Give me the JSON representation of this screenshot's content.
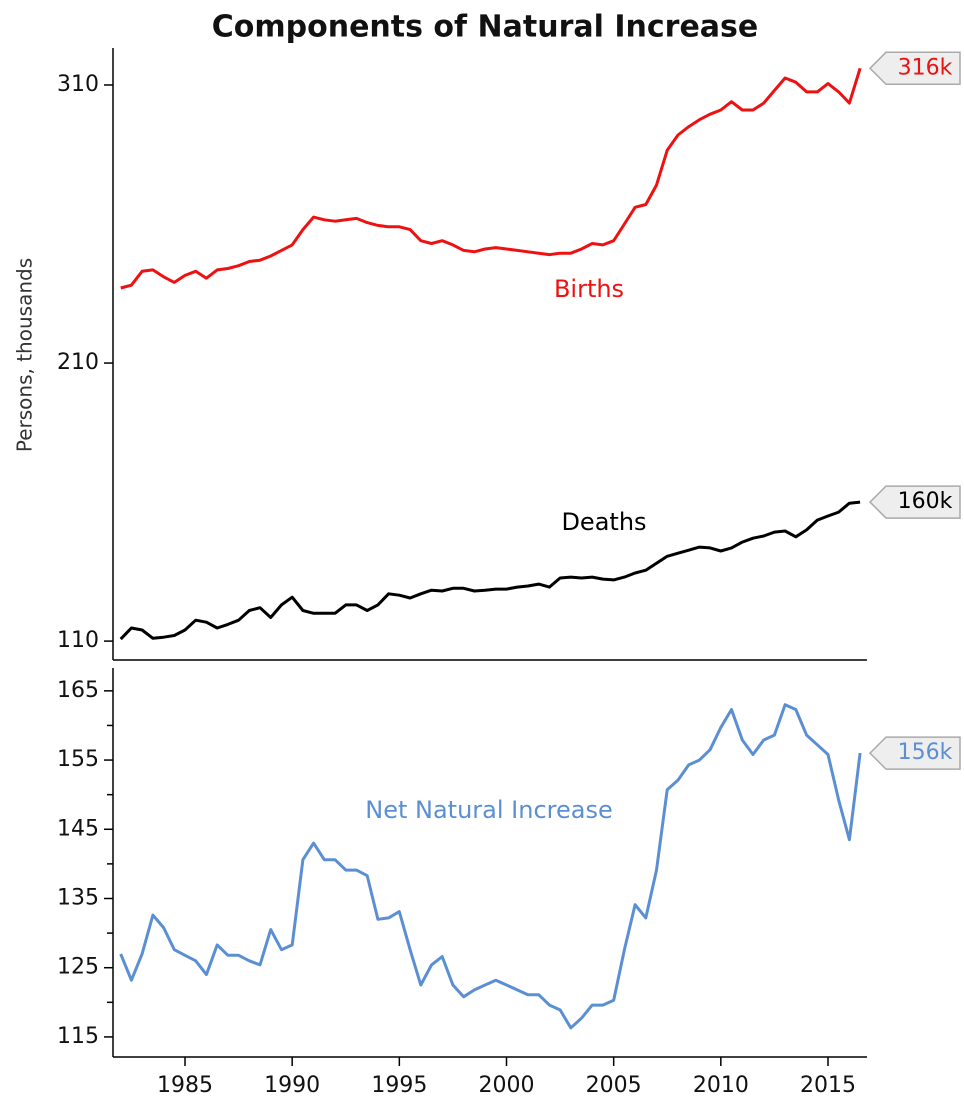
{
  "chart_data": [
    {
      "type": "line",
      "title": "Components of Natural Increase",
      "ylabel": "Persons, thousands",
      "x": [
        1982,
        1982.5,
        1983,
        1983.5,
        1984,
        1984.5,
        1985,
        1985.5,
        1986,
        1986.5,
        1987,
        1987.5,
        1988,
        1988.5,
        1989,
        1989.5,
        1990,
        1990.5,
        1991,
        1991.5,
        1992,
        1992.5,
        1993,
        1993.5,
        1994,
        1994.5,
        1995,
        1995.5,
        1996,
        1996.5,
        1997,
        1997.5,
        1998,
        1998.5,
        1999,
        1999.5,
        2000,
        2000.5,
        2001,
        2001.5,
        2002,
        2002.5,
        2003,
        2003.5,
        2004,
        2004.5,
        2005,
        2005.5,
        2006,
        2006.5,
        2007,
        2007.5,
        2008,
        2008.5,
        2009,
        2009.5,
        2010,
        2010.5,
        2011,
        2011.5,
        2012,
        2012.5,
        2013,
        2013.5,
        2014,
        2014.5,
        2015,
        2015.5,
        2016,
        2016.5
      ],
      "xlim": [
        1981.64,
        2016.82
      ],
      "ylim": [
        103.2,
        323.3
      ],
      "yticks": [
        110,
        210,
        310
      ],
      "series": [
        {
          "name": "Births",
          "color": "#ee1111",
          "end_label": "316k",
          "values": [
            237,
            238,
            243,
            243.5,
            241,
            239,
            241.5,
            243,
            240.5,
            243.5,
            244,
            245,
            246.5,
            247,
            248.5,
            250.5,
            252.5,
            258,
            262.5,
            261.5,
            261,
            261.5,
            262,
            260.5,
            259.5,
            259,
            259,
            258,
            254,
            253,
            254,
            252.5,
            250.5,
            250,
            251,
            251.5,
            251,
            250.5,
            250,
            249.5,
            249,
            249.5,
            249.5,
            251,
            253,
            252.5,
            254,
            260,
            266,
            267,
            274,
            286.5,
            292,
            295,
            297.5,
            299.5,
            301,
            304,
            301,
            301,
            303.5,
            308,
            312.5,
            311,
            307.5,
            307.5,
            310.5,
            307.5,
            303.5,
            316
          ]
        },
        {
          "name": "Deaths",
          "color": "#000000",
          "end_label": "160k",
          "values": [
            110.7,
            114.7,
            114,
            111,
            111.4,
            112,
            114,
            117.5,
            116.8,
            114.7,
            116,
            117.5,
            121,
            122,
            118.5,
            123,
            125.8,
            121,
            120,
            120,
            120,
            123,
            123,
            121,
            123,
            127,
            126.5,
            125.5,
            127,
            128.3,
            128,
            129,
            129,
            128,
            128.3,
            128.7,
            128.7,
            129.4,
            129.8,
            130.5,
            129.4,
            132.7,
            133,
            132.7,
            133,
            132.3,
            132,
            133,
            134.5,
            135.5,
            138,
            140.5,
            141.6,
            142.7,
            143.8,
            143.5,
            142.4,
            143.5,
            145.6,
            147,
            147.8,
            149.2,
            149.6,
            147.5,
            150,
            153.5,
            155,
            156.4,
            159.6,
            160
          ]
        }
      ]
    },
    {
      "type": "line",
      "x": [
        1982,
        1982.5,
        1983,
        1983.5,
        1984,
        1984.5,
        1985,
        1985.5,
        1986,
        1986.5,
        1987,
        1987.5,
        1988,
        1988.5,
        1989,
        1989.5,
        1990,
        1990.5,
        1991,
        1991.5,
        1992,
        1992.5,
        1993,
        1993.5,
        1994,
        1994.5,
        1995,
        1995.5,
        1996,
        1996.5,
        1997,
        1997.5,
        1998,
        1998.5,
        1999,
        1999.5,
        2000,
        2000.5,
        2001,
        2001.5,
        2002,
        2002.5,
        2003,
        2003.5,
        2004,
        2004.5,
        2005,
        2005.5,
        2006,
        2006.5,
        2007,
        2007.5,
        2008,
        2008.5,
        2009,
        2009.5,
        2010,
        2010.5,
        2011,
        2011.5,
        2012,
        2012.5,
        2013,
        2013.5,
        2014,
        2014.5,
        2015,
        2015.5,
        2016,
        2016.5
      ],
      "xlim": [
        1981.64,
        2016.82
      ],
      "xticks": [
        1985,
        1990,
        1995,
        2000,
        2005,
        2010,
        2015
      ],
      "ylim": [
        112.1,
        168.3
      ],
      "yticks": [
        115,
        125,
        135,
        145,
        155,
        165
      ],
      "yminorticks": [
        120,
        130,
        140,
        150,
        160
      ],
      "series": [
        {
          "name": "Net Natural Increase",
          "color": "#5b8fd4",
          "end_label": "156k",
          "values": [
            127,
            123.2,
            127,
            132.6,
            130.8,
            127.6,
            126.8,
            126,
            124,
            128.3,
            126.8,
            126.8,
            126,
            125.4,
            130.5,
            127.6,
            128.3,
            140.6,
            143,
            140.6,
            140.6,
            139.1,
            139.1,
            138.3,
            132,
            132.2,
            133.1,
            127.6,
            122.5,
            125.4,
            126.6,
            122.5,
            120.8,
            121.8,
            122.5,
            123.2,
            122.5,
            121.8,
            121.1,
            121.1,
            119.6,
            118.9,
            116.3,
            117.7,
            119.6,
            119.6,
            120.3,
            127.6,
            134.1,
            132.2,
            139.1,
            150.7,
            152.1,
            154.3,
            155,
            156.5,
            159.7,
            162.3,
            157.9,
            155.8,
            157.9,
            158.6,
            163,
            162.3,
            158.6,
            157.2,
            155.8,
            149.2,
            143.5,
            156
          ]
        }
      ]
    }
  ]
}
